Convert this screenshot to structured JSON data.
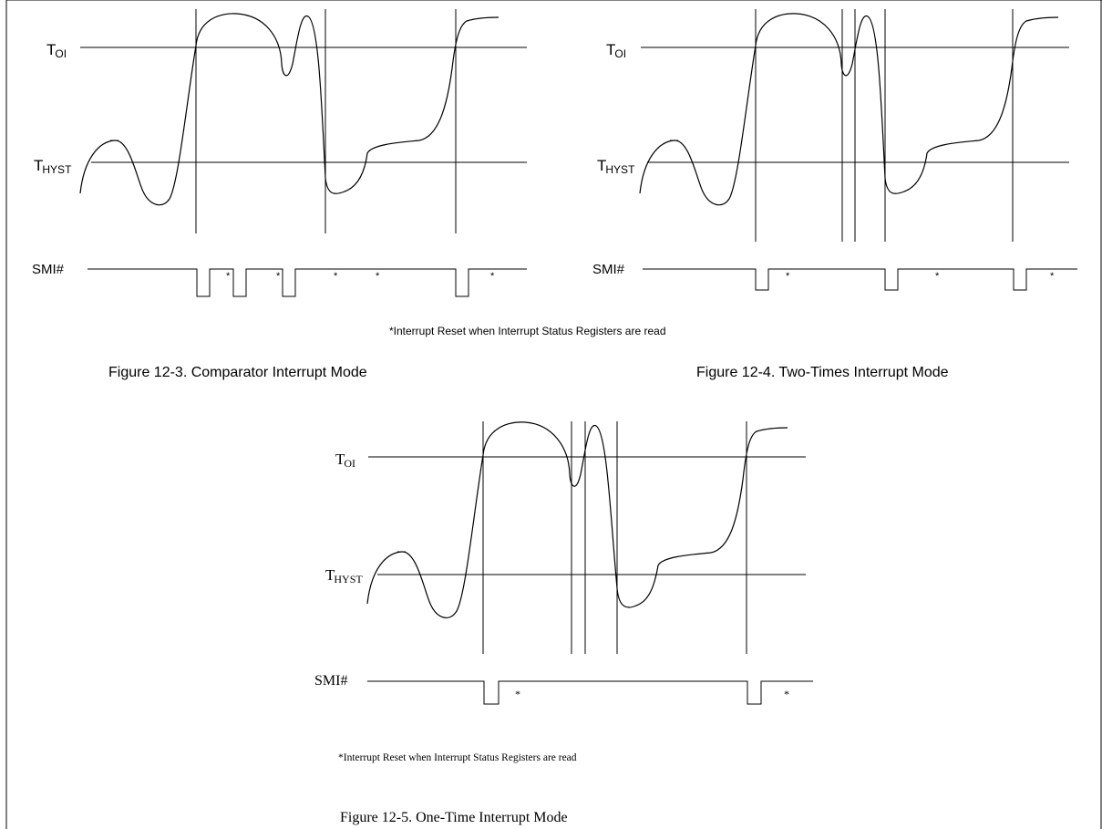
{
  "figure_comparator": {
    "threshold_high_main": "T",
    "threshold_high_sub": "OI",
    "threshold_low_main": "T",
    "threshold_low_sub": "HYST",
    "signal_label": "SMI#",
    "reset_marker": "*",
    "caption": "Figure 12-3. Comparator Interrupt Mode"
  },
  "figure_two_times": {
    "threshold_high_main": "T",
    "threshold_high_sub": "OI",
    "threshold_low_main": "T",
    "threshold_low_sub": "HYST",
    "signal_label": "SMI#",
    "reset_marker": "*",
    "caption": "Figure 12-4. Two-Times Interrupt Mode"
  },
  "figure_one_time": {
    "threshold_high_main": "T",
    "threshold_high_sub": "OI",
    "threshold_low_main": "T",
    "threshold_low_sub": "HYST",
    "signal_label": "SMI#",
    "reset_marker": "*",
    "caption": "Figure 12-5. One-Time Interrupt Mode"
  },
  "footnote_top": "*Interrupt Reset when Interrupt Status Registers are read",
  "footnote_bottom": "*Interrupt Reset when Interrupt Status Registers are read"
}
